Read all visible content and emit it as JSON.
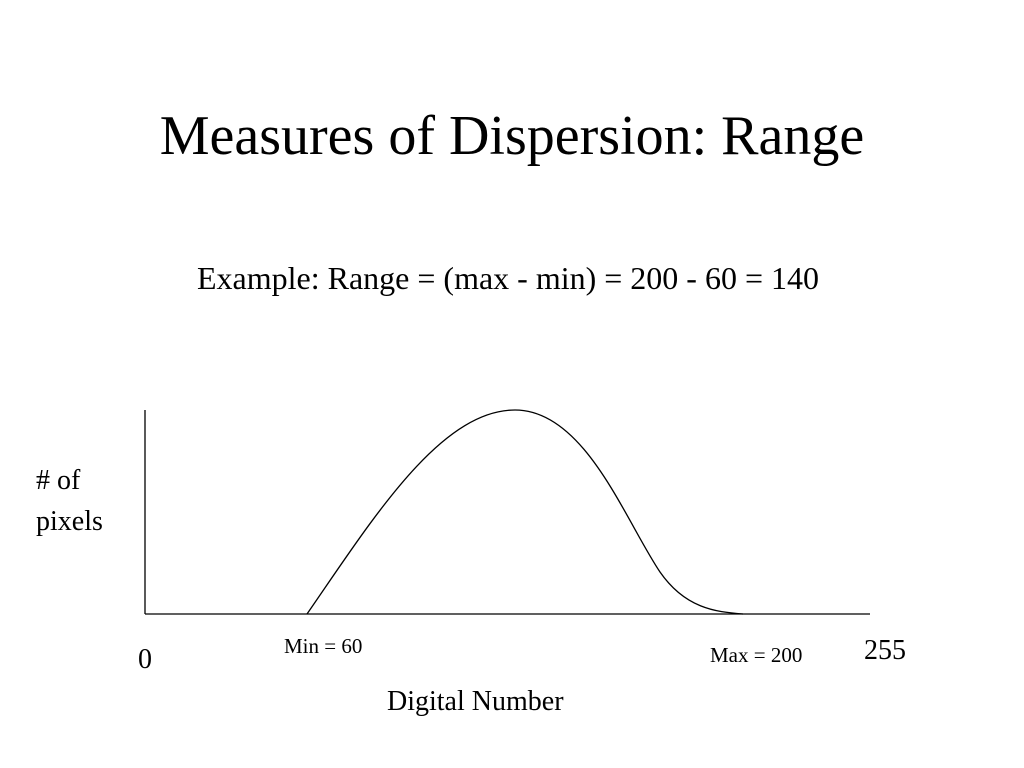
{
  "title": "Measures of Dispersion: Range",
  "subtitle": "Example: Range = (max - min) = 200 - 60 = 140",
  "diagram": {
    "y_axis_label": [
      "# of",
      "pixels"
    ],
    "x_axis_label": "Digital Number",
    "axis_start_label": "0",
    "axis_end_label": "255",
    "min_label": "Min = 60",
    "max_label": "Max = 200",
    "min_value": 60,
    "max_value": 200,
    "axis_max_value": 255,
    "curve_shape": "bell-shaped histogram outline",
    "line_color": "#000000"
  }
}
